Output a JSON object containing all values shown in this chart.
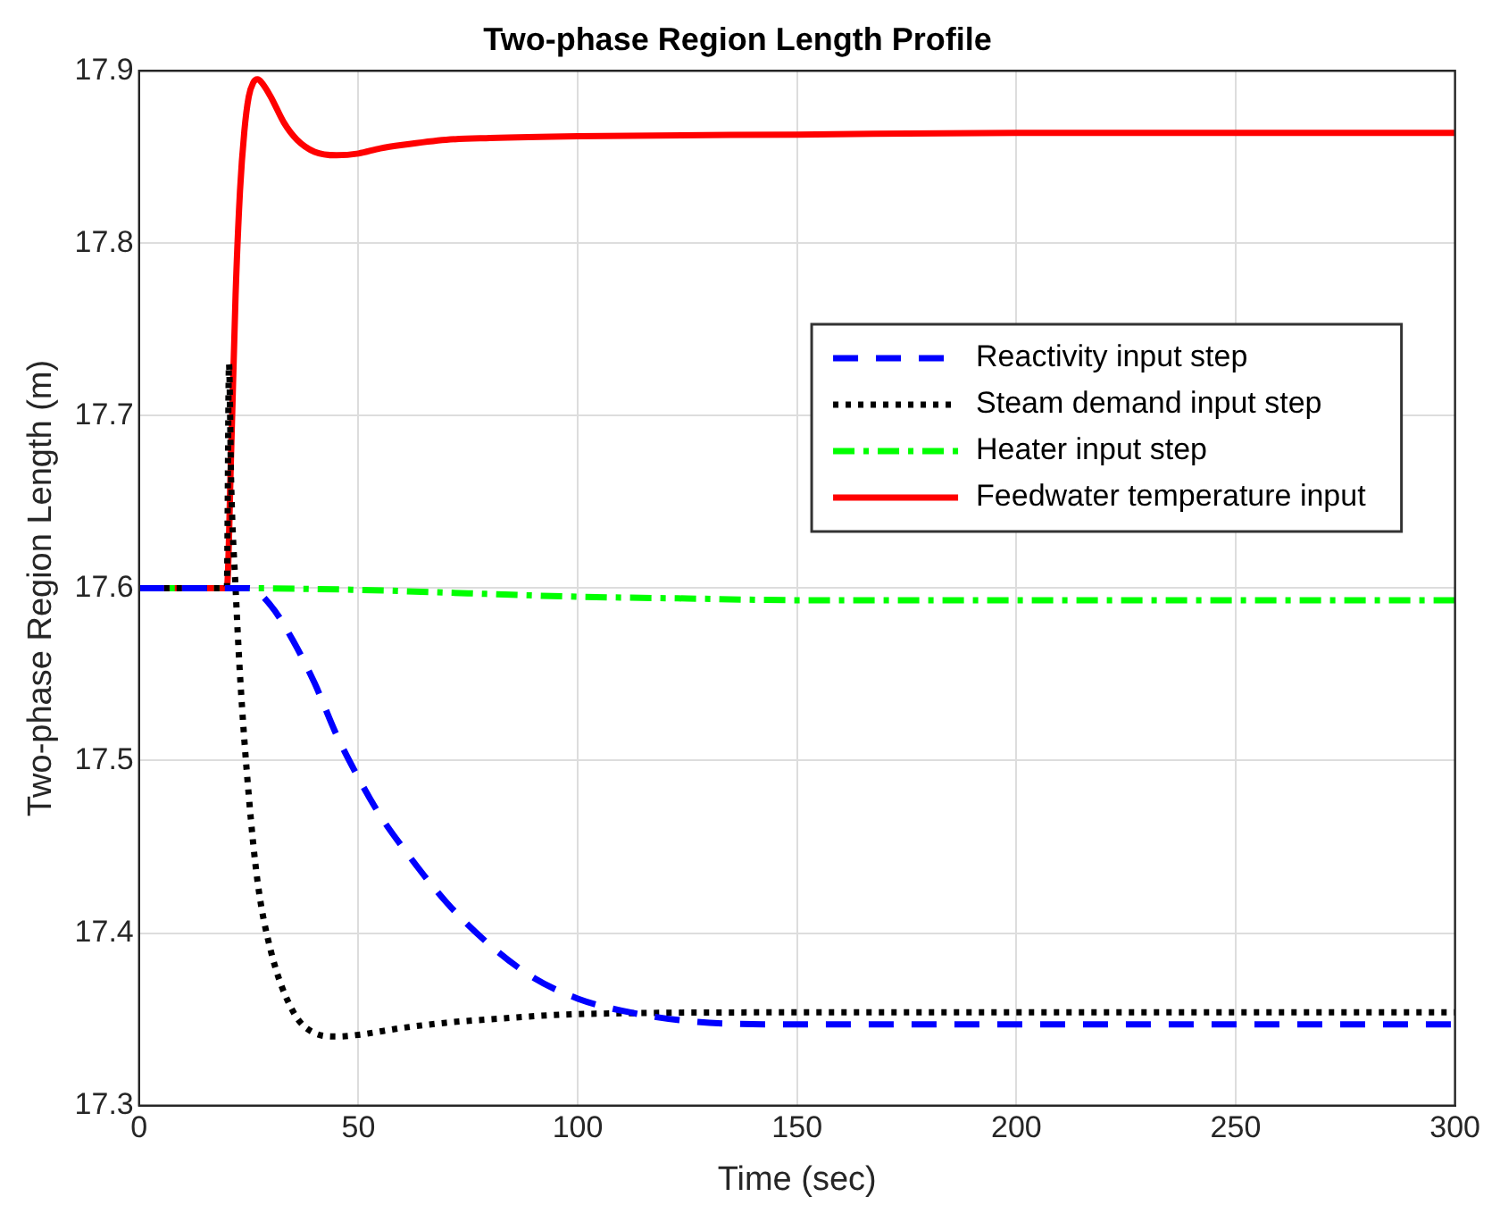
{
  "chart_data": {
    "type": "line",
    "title": "Two-phase Region Length Profile",
    "xlabel": "Time (sec)",
    "ylabel": "Two-phase Region Length (m)",
    "xlim": [
      0,
      300
    ],
    "xticks": [
      0,
      50,
      100,
      150,
      200,
      250,
      300
    ],
    "ylim": [
      17.3,
      17.9
    ],
    "yticks": [
      17.3,
      17.4,
      17.5,
      17.6,
      17.7,
      17.8,
      17.9
    ],
    "grid": true,
    "legend": "right",
    "series": [
      {
        "name": "Reactivity input step",
        "color": "#0000ff",
        "line_style": "dashed",
        "x": [
          0,
          20,
          25,
          30,
          35,
          40,
          45,
          50,
          55,
          60,
          70,
          80,
          90,
          100,
          110,
          125,
          150,
          200,
          250,
          300
        ],
        "values": [
          17.6,
          17.6,
          17.6,
          17.59,
          17.57,
          17.545,
          17.515,
          17.49,
          17.468,
          17.45,
          17.418,
          17.393,
          17.374,
          17.362,
          17.355,
          17.349,
          17.347,
          17.347,
          17.347,
          17.347
        ]
      },
      {
        "name": "Steam demand input step",
        "color": "#000000",
        "line_style": "dotted",
        "x": [
          0,
          20,
          20.5,
          21,
          22,
          23,
          25,
          27,
          30,
          35,
          40,
          45,
          50,
          60,
          70,
          80,
          100,
          150,
          200,
          300
        ],
        "values": [
          17.6,
          17.6,
          17.73,
          17.66,
          17.6,
          17.55,
          17.48,
          17.43,
          17.39,
          17.355,
          17.342,
          17.34,
          17.341,
          17.345,
          17.348,
          17.35,
          17.353,
          17.354,
          17.354,
          17.354
        ]
      },
      {
        "name": "Heater input step",
        "color": "#00ff00",
        "line_style": "dashdot",
        "x": [
          0,
          20,
          50,
          75,
          100,
          125,
          150,
          200,
          250,
          300
        ],
        "values": [
          17.6,
          17.6,
          17.599,
          17.597,
          17.595,
          17.594,
          17.593,
          17.593,
          17.593,
          17.593
        ]
      },
      {
        "name": "Feedwater temperature input",
        "color": "#ff0000",
        "line_style": "solid",
        "x": [
          0,
          20,
          21,
          22,
          23,
          24,
          25,
          26,
          27,
          28,
          30,
          33,
          36,
          40,
          45,
          50,
          55,
          60,
          70,
          80,
          100,
          150,
          200,
          300
        ],
        "values": [
          17.6,
          17.6,
          17.68,
          17.77,
          17.83,
          17.865,
          17.885,
          17.893,
          17.895,
          17.893,
          17.885,
          17.87,
          17.86,
          17.853,
          17.851,
          17.852,
          17.855,
          17.857,
          17.86,
          17.861,
          17.862,
          17.863,
          17.864,
          17.864
        ]
      }
    ]
  }
}
